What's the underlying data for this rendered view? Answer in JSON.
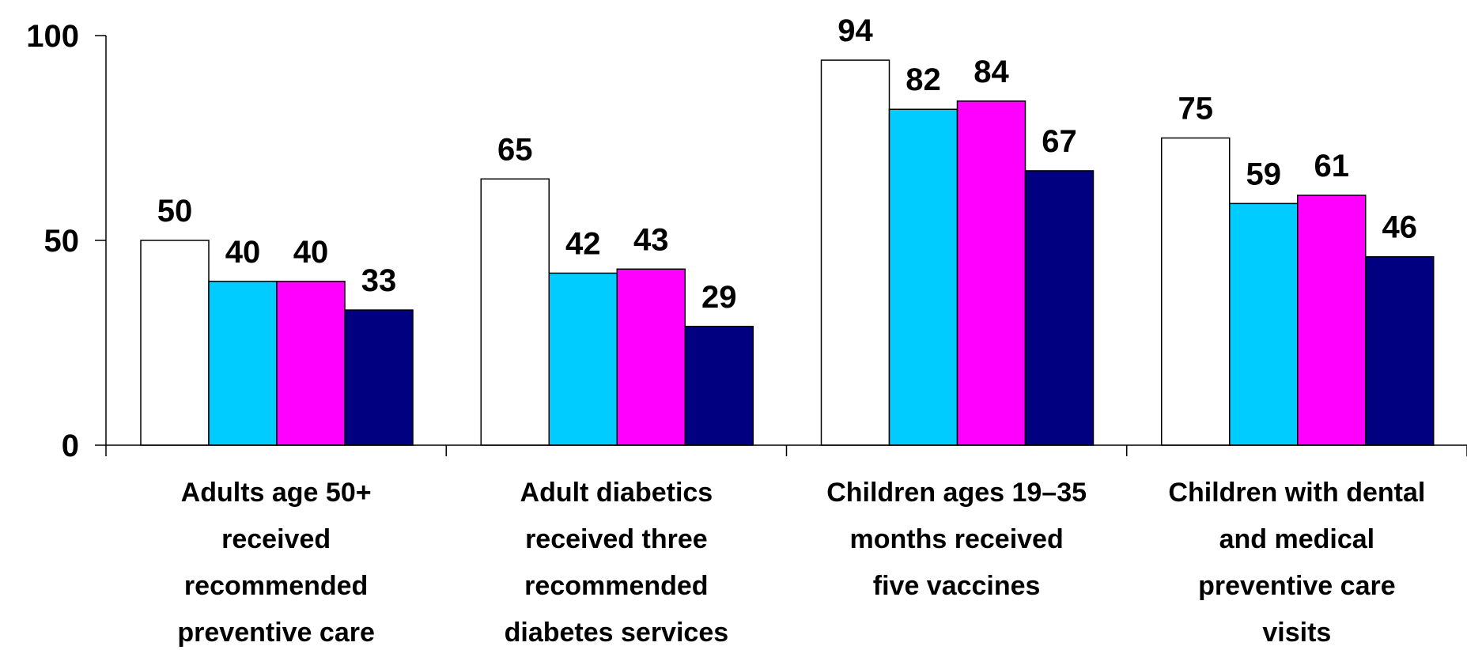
{
  "chart_data": {
    "type": "bar",
    "title": "",
    "xlabel": "",
    "ylabel": "",
    "ylim": [
      0,
      100
    ],
    "yticks": [
      0,
      50,
      100
    ],
    "grid": false,
    "legend": "none",
    "categories": [
      [
        "Adults age 50+",
        "received",
        "recommended",
        "preventive care"
      ],
      [
        "Adult diabetics",
        "received three",
        "recommended",
        "diabetes services"
      ],
      [
        "Children ages 19–35",
        "months received",
        "five vaccines"
      ],
      [
        "Children with dental",
        "and medical",
        "preventive care",
        "visits"
      ]
    ],
    "series": [
      {
        "color": "#ffffff",
        "values": [
          50,
          65,
          94,
          75
        ]
      },
      {
        "color": "#00ccff",
        "values": [
          40,
          42,
          82,
          59
        ]
      },
      {
        "color": "#ff00ff",
        "values": [
          40,
          43,
          84,
          61
        ]
      },
      {
        "color": "#000080",
        "values": [
          33,
          29,
          67,
          46
        ]
      }
    ]
  }
}
